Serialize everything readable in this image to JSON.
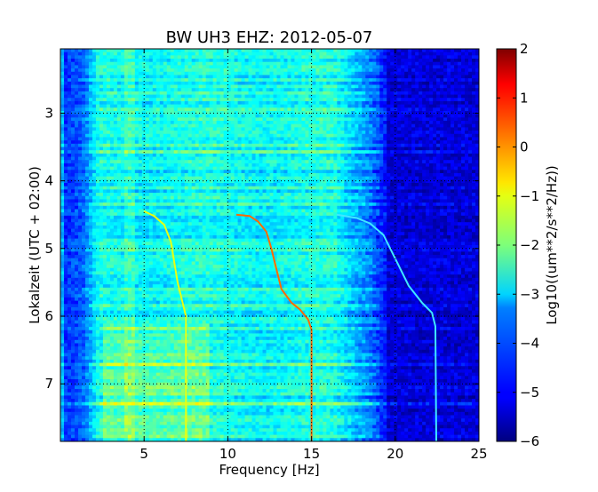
{
  "chart_data": {
    "type": "heatmap",
    "title": "BW UH3 EHZ: 2012-05-07",
    "xlabel": "Frequency [Hz]",
    "ylabel": "Lokalzeit (UTC + 02:00)",
    "xlim": [
      0,
      25
    ],
    "ylim": [
      7.85,
      2.05
    ],
    "y_axis_inverted": true,
    "x_ticks": [
      5,
      10,
      15,
      20,
      25
    ],
    "x_tick_labels": [
      "5",
      "10",
      "15",
      "20",
      "25"
    ],
    "y_ticks": [
      3,
      4,
      5,
      6,
      7
    ],
    "y_tick_labels": [
      "3",
      "4",
      "5",
      "6",
      "7"
    ],
    "grid": true,
    "colormap": "jet",
    "colorbar": {
      "label": "Log10((um**2/s**2/Hz))",
      "range": [
        -6,
        2
      ],
      "ticks": [
        2,
        1,
        0,
        -1,
        -2,
        -3,
        -4,
        -5,
        -6
      ],
      "tick_labels": [
        "2",
        "1",
        "0",
        "−1",
        "−2",
        "−3",
        "−4",
        "−5",
        "−6"
      ]
    },
    "tracks": [
      {
        "points": [
          [
            5.0,
            4.45
          ],
          [
            5.6,
            4.52
          ],
          [
            6.2,
            4.65
          ],
          [
            6.6,
            4.9
          ],
          [
            6.8,
            5.2
          ],
          [
            7.0,
            5.5
          ],
          [
            7.3,
            5.8
          ],
          [
            7.5,
            6.0
          ],
          [
            7.5,
            7.85
          ]
        ]
      },
      {
        "points": [
          [
            10.5,
            4.5
          ],
          [
            11.3,
            4.52
          ],
          [
            11.8,
            4.6
          ],
          [
            12.3,
            4.75
          ],
          [
            12.6,
            5.0
          ],
          [
            12.9,
            5.3
          ],
          [
            13.2,
            5.6
          ],
          [
            13.8,
            5.8
          ],
          [
            14.3,
            5.9
          ],
          [
            14.8,
            6.05
          ],
          [
            15.0,
            6.2
          ],
          [
            15.0,
            7.85
          ]
        ]
      },
      {
        "points": [
          [
            16.5,
            4.5
          ],
          [
            17.7,
            4.55
          ],
          [
            18.5,
            4.63
          ],
          [
            19.3,
            4.8
          ],
          [
            19.8,
            5.05
          ],
          [
            20.3,
            5.3
          ],
          [
            20.8,
            5.55
          ],
          [
            21.6,
            5.8
          ],
          [
            22.2,
            5.95
          ],
          [
            22.4,
            6.15
          ],
          [
            22.45,
            7.85
          ]
        ]
      }
    ]
  }
}
